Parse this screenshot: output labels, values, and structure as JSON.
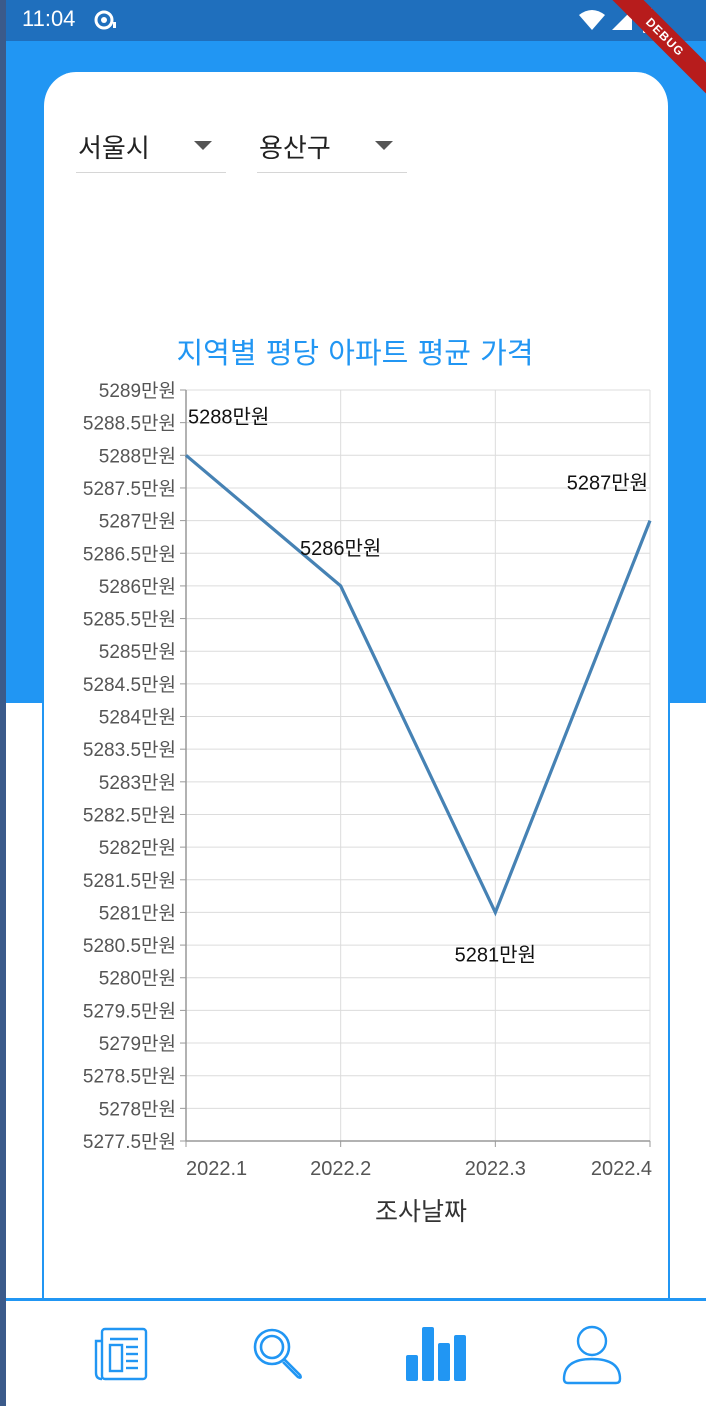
{
  "status": {
    "time": "11:04",
    "debug_label": "DEBUG"
  },
  "filters": {
    "city": "서울시",
    "district": "용산구"
  },
  "colors": {
    "accent": "#2196f3",
    "line": "#4682b4",
    "grid": "#dcdcdc",
    "status_bar": "#1f6fbd"
  },
  "chart_data": {
    "type": "line",
    "title": "지역별 평당 아파트 평균 가격",
    "xlabel": "조사날짜",
    "ylabel": "",
    "categories": [
      "2022.1",
      "2022.2",
      "2022.3",
      "2022.4"
    ],
    "series": [
      {
        "values": [
          5288,
          5286,
          5281,
          5287
        ]
      }
    ],
    "data_labels": [
      "5288만원",
      "5286만원",
      "5281만원",
      "5287만원"
    ],
    "ylim": [
      5277.5,
      5289
    ],
    "y_tick_step": 0.5,
    "y_unit": "만원",
    "grid": true
  },
  "nav": {
    "items": [
      {
        "icon": "newspaper-icon",
        "active": false
      },
      {
        "icon": "search-icon",
        "active": false
      },
      {
        "icon": "bar-chart-icon",
        "active": true
      },
      {
        "icon": "person-icon",
        "active": false
      }
    ]
  }
}
